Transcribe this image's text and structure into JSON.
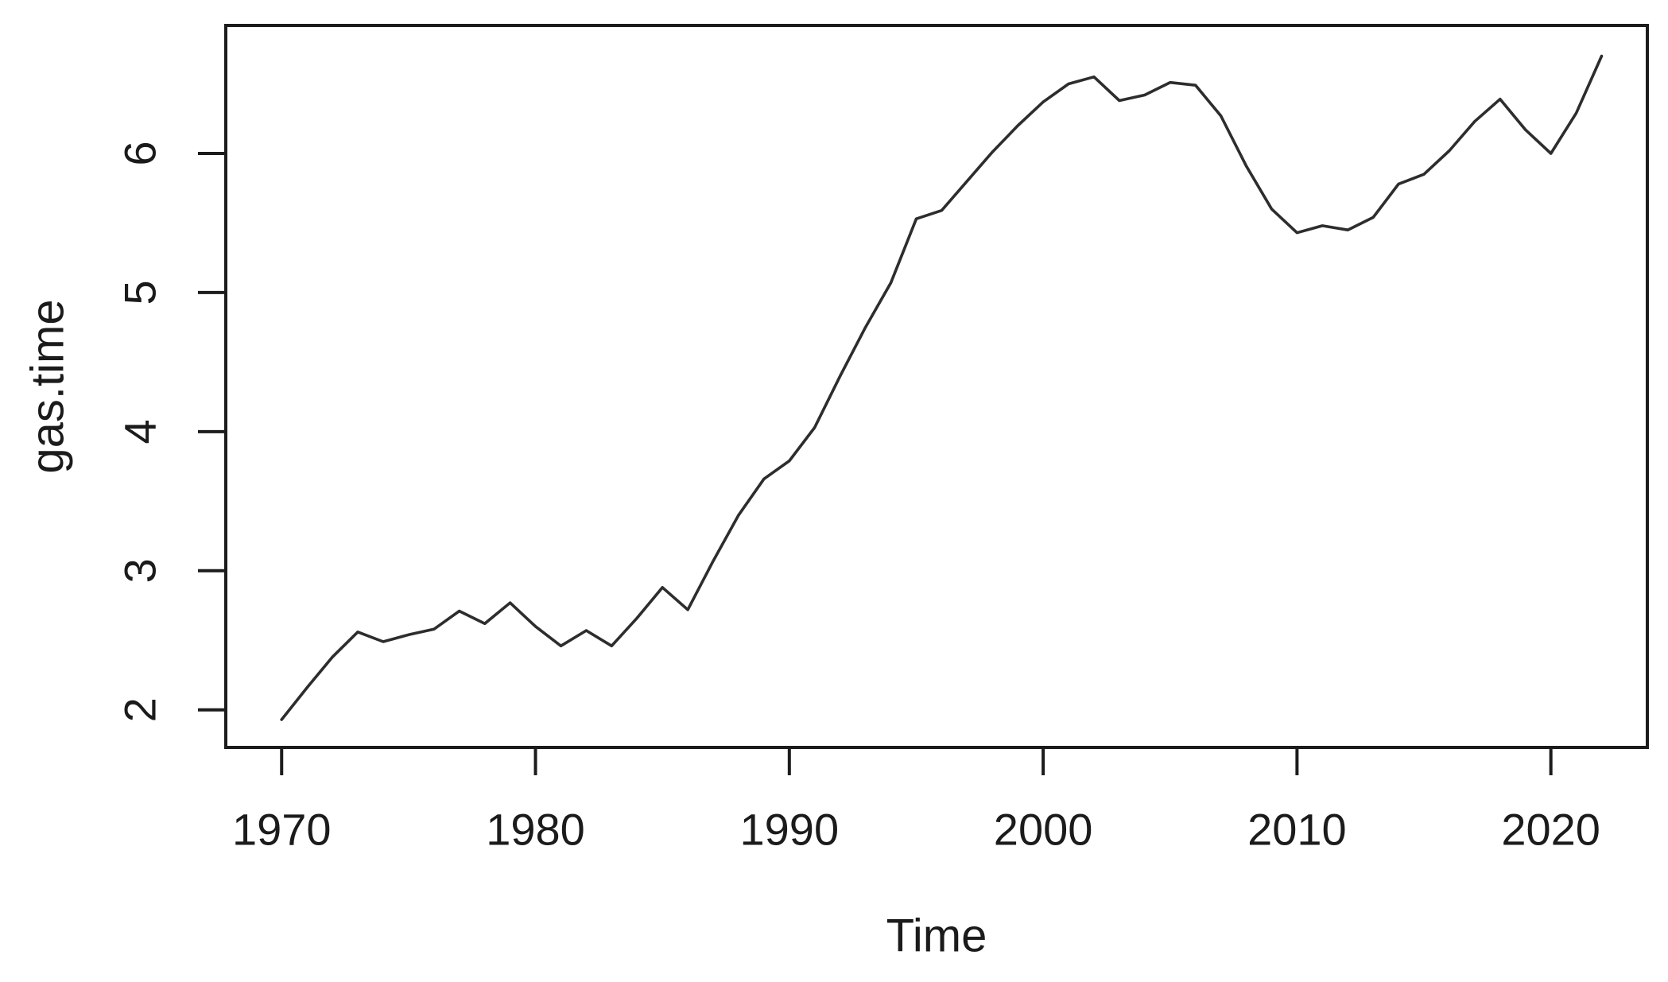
{
  "figure": {
    "kind": "R base graphics time-series plot",
    "background": "#ffffff",
    "frame_color": "#1c1c1c",
    "text_color": "#1b1b1b"
  },
  "chart_data": {
    "type": "line",
    "title": "",
    "xlabel": "Time",
    "ylabel": "gas.time",
    "series": [
      {
        "name": "gas.time",
        "x_start": 1970,
        "x_step": 1,
        "x": [
          1970,
          1971,
          1972,
          1973,
          1974,
          1975,
          1976,
          1977,
          1978,
          1979,
          1980,
          1981,
          1982,
          1983,
          1984,
          1985,
          1986,
          1987,
          1988,
          1989,
          1990,
          1991,
          1992,
          1993,
          1994,
          1995,
          1996,
          1997,
          1998,
          1999,
          2000,
          2001,
          2002,
          2003,
          2004,
          2005,
          2006,
          2007,
          2008,
          2009,
          2010,
          2011,
          2012,
          2013,
          2014,
          2015,
          2016,
          2017,
          2018,
          2019,
          2020,
          2021,
          2022
        ],
        "values": [
          1.93,
          2.16,
          2.38,
          2.56,
          2.49,
          2.54,
          2.58,
          2.71,
          2.62,
          2.77,
          2.6,
          2.46,
          2.57,
          2.46,
          2.66,
          2.88,
          2.72,
          3.07,
          3.4,
          3.66,
          3.79,
          4.03,
          4.4,
          4.75,
          5.07,
          5.53,
          5.59,
          5.8,
          6.01,
          6.2,
          6.37,
          6.5,
          6.55,
          6.38,
          6.42,
          6.51,
          6.49,
          6.27,
          5.91,
          5.6,
          5.43,
          5.48,
          5.45,
          5.54,
          5.78,
          5.85,
          6.02,
          6.23,
          6.39,
          6.17,
          6.0,
          6.29,
          6.7
        ]
      }
    ],
    "x_ticks": [
      1970,
      1980,
      1990,
      2000,
      2010,
      2020
    ],
    "y_ticks": [
      2,
      3,
      4,
      5,
      6
    ],
    "xlim": [
      1967.8,
      2023.8
    ],
    "ylim": [
      1.73,
      6.92
    ],
    "grid": false,
    "legend_position": "none",
    "line_color": "#2d2d2d"
  }
}
